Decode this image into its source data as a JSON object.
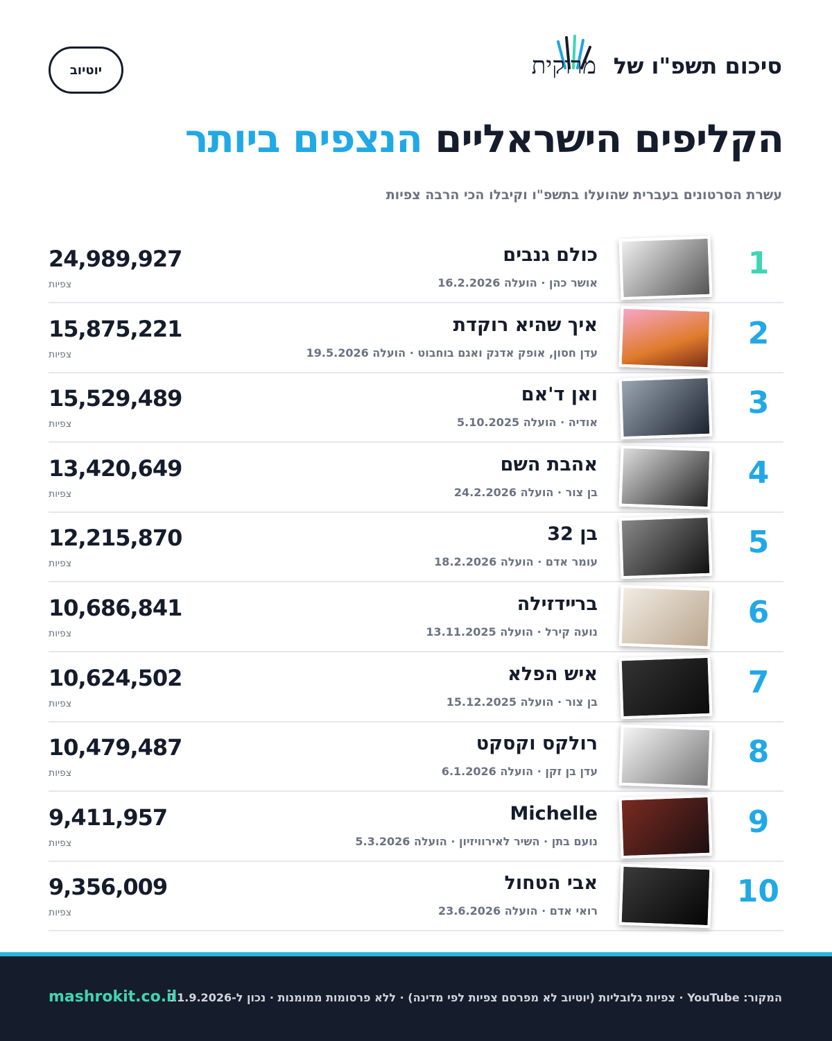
{
  "header": {
    "title": "סיכום תשפ\"ו של",
    "logo": "מרוקית",
    "badge": "יוטיוב"
  },
  "headline": {
    "main": "הקליפים הישראליים",
    "accent": "הנצפים ביותר"
  },
  "subtitle": "עשרת הסרטונים בעברית שהועלו בתשפ\"ו וקיבלו הכי הרבה צפיות",
  "rows": [
    {
      "rank": 1,
      "title": "כולם גנבים",
      "meta": "אושר כהן · הועלה 16.2.2026",
      "views": "24,989,927",
      "unit": "צפיות"
    },
    {
      "rank": 2,
      "title": "איך שהיא רוקדת",
      "meta": "עדן חסון, אופק אדנק ואגם בוחבוט · הועלה 19.5.2026",
      "views": "15,875,221",
      "unit": "צפיות"
    },
    {
      "rank": 3,
      "title": "ואן ד'אם",
      "meta": "אודיה · הועלה 5.10.2025",
      "views": "15,529,489",
      "unit": "צפיות"
    },
    {
      "rank": 4,
      "title": "אהבת השם",
      "meta": "בן צור · הועלה 24.2.2026",
      "views": "13,420,649",
      "unit": "צפיות"
    },
    {
      "rank": 5,
      "title": "בן 32",
      "meta": "עומר אדם · הועלה 18.2.2026",
      "views": "12,215,870",
      "unit": "צפיות"
    },
    {
      "rank": 6,
      "title": "ברײדזילה",
      "meta": "נועה קירל · הועלה 13.11.2025",
      "views": "10,686,841",
      "unit": "צפיות"
    },
    {
      "rank": 7,
      "title": "איש הפלא",
      "meta": "בן צור · הועלה 15.12.2025",
      "views": "10,624,502",
      "unit": "צפיות"
    },
    {
      "rank": 8,
      "title": "רולקס וקסקט",
      "meta": "עדן בן זקן · הועלה 6.1.2026",
      "views": "10,479,487",
      "unit": "צפיות"
    },
    {
      "rank": 9,
      "title": "Michelle",
      "meta": "נועם בתן · השיר לאירוויזיון · הועלה 5.3.2026",
      "views": "9,411,957",
      "unit": "צפיות"
    },
    {
      "rank": 10,
      "title": "אבי הטחול",
      "meta": "רואי אדם · הועלה 23.6.2026",
      "views": "9,356,009",
      "unit": "צפיות"
    }
  ],
  "footer": {
    "source": "המקור: YouTube · צפיות גלובליות (יוטיוב לא מפרסם צפיות לפי מדינה) · ללא פרסומות ממומנות · נכון ל-11.9.2026",
    "site": "mashrokit.co.il"
  }
}
